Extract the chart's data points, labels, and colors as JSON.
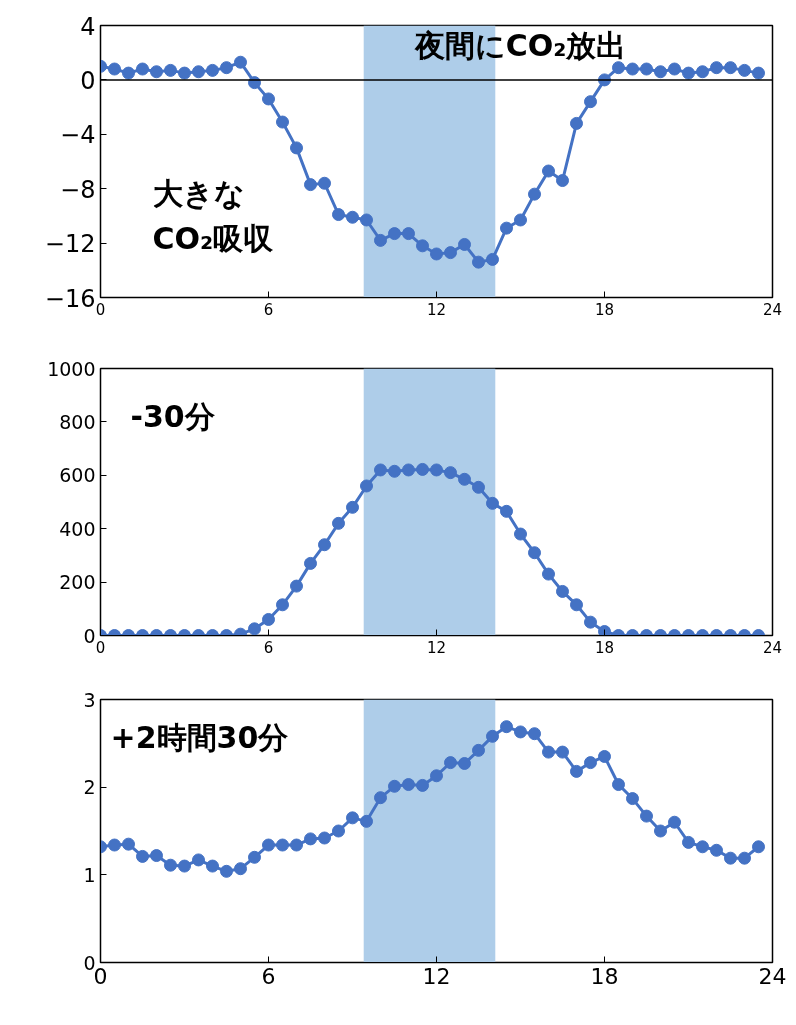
{
  "chart_data": [
    {
      "type": "line",
      "x": [
        0,
        0.5,
        1,
        1.5,
        2,
        2.5,
        3,
        3.5,
        4,
        4.5,
        5,
        5.5,
        6,
        6.5,
        7,
        7.5,
        8,
        8.5,
        9,
        9.5,
        10,
        10.5,
        11,
        11.5,
        12,
        12.5,
        13,
        13.5,
        14,
        14.5,
        15,
        15.5,
        16,
        16.5,
        17,
        17.5,
        18,
        18.5,
        19,
        19.5,
        20,
        20.5,
        21,
        21.5,
        22,
        22.5,
        23,
        23.5
      ],
      "series": [
        {
          "color": "#4472c4",
          "values": [
            1.0,
            0.8,
            0.5,
            0.8,
            0.6,
            0.7,
            0.5,
            0.6,
            0.7,
            0.9,
            1.3,
            -0.2,
            -1.4,
            -3.1,
            -5.0,
            -7.7,
            -7.6,
            -9.9,
            -10.1,
            -10.3,
            -11.8,
            -11.3,
            -11.3,
            -12.2,
            -12.8,
            -12.7,
            -12.1,
            -13.4,
            -13.2,
            -10.9,
            -10.3,
            -8.4,
            -6.7,
            -7.4,
            -3.2,
            -1.6,
            0.0,
            0.9,
            0.8,
            0.8,
            0.6,
            0.8,
            0.5,
            0.6,
            0.9,
            0.9,
            0.7,
            0.5
          ]
        }
      ],
      "xlim": [
        0,
        24
      ],
      "xticks": [
        0,
        6,
        12,
        18,
        24
      ],
      "ylim": [
        -16,
        4
      ],
      "yticks": [
        -16,
        -12,
        -8,
        -4,
        0,
        4
      ],
      "bands": [
        {
          "axis": "x",
          "from": 9.4,
          "to": 14.1,
          "color": "#aecde9"
        }
      ],
      "ref_lines": [
        {
          "axis": "y",
          "value": 0,
          "color": "#000000"
        }
      ],
      "annotations": [
        "夜間にCO₂放出",
        "大きな\nCO₂吸収"
      ],
      "marker": "circle",
      "line_style": "solid",
      "grid": false
    },
    {
      "type": "line",
      "x": [
        0,
        0.5,
        1,
        1.5,
        2,
        2.5,
        3,
        3.5,
        4,
        4.5,
        5,
        5.5,
        6,
        6.5,
        7,
        7.5,
        8,
        8.5,
        9,
        9.5,
        10,
        10.5,
        11,
        11.5,
        12,
        12.5,
        13,
        13.5,
        14,
        14.5,
        15,
        15.5,
        16,
        16.5,
        17,
        17.5,
        18,
        18.5,
        19,
        19.5,
        20,
        20.5,
        21,
        21.5,
        22,
        22.5,
        23,
        23.5
      ],
      "series": [
        {
          "color": "#4472c4",
          "values": [
            0,
            0,
            0,
            0,
            0,
            0,
            0,
            0,
            0,
            0,
            5,
            25,
            60,
            115,
            185,
            270,
            340,
            420,
            480,
            560,
            620,
            615,
            620,
            622,
            620,
            610,
            585,
            555,
            495,
            465,
            380,
            310,
            230,
            165,
            115,
            50,
            15,
            0,
            0,
            0,
            0,
            0,
            0,
            0,
            0,
            0,
            0,
            0
          ]
        }
      ],
      "xlim": [
        0,
        24
      ],
      "xticks": [
        0,
        6,
        12,
        18,
        24
      ],
      "ylim": [
        0,
        1000
      ],
      "yticks": [
        0,
        200,
        400,
        600,
        800,
        1000
      ],
      "bands": [
        {
          "axis": "x",
          "from": 9.4,
          "to": 14.1,
          "color": "#aecde9"
        }
      ],
      "annotations": [
        "-30分"
      ],
      "marker": "circle",
      "line_style": "solid",
      "grid": false
    },
    {
      "type": "line",
      "x": [
        0,
        0.5,
        1,
        1.5,
        2,
        2.5,
        3,
        3.5,
        4,
        4.5,
        5,
        5.5,
        6,
        6.5,
        7,
        7.5,
        8,
        8.5,
        9,
        9.5,
        10,
        10.5,
        11,
        11.5,
        12,
        12.5,
        13,
        13.5,
        14,
        14.5,
        15,
        15.5,
        16,
        16.5,
        17,
        17.5,
        18,
        18.5,
        19,
        19.5,
        20,
        20.5,
        21,
        21.5,
        22,
        22.5,
        23,
        23.5
      ],
      "series": [
        {
          "color": "#4472c4",
          "values": [
            1.32,
            1.34,
            1.35,
            1.21,
            1.22,
            1.11,
            1.1,
            1.17,
            1.1,
            1.04,
            1.07,
            1.2,
            1.34,
            1.34,
            1.34,
            1.41,
            1.42,
            1.5,
            1.65,
            1.61,
            1.88,
            2.01,
            2.03,
            2.02,
            2.13,
            2.28,
            2.27,
            2.42,
            2.58,
            2.69,
            2.63,
            2.61,
            2.4,
            2.4,
            2.18,
            2.28,
            2.35,
            2.03,
            1.87,
            1.67,
            1.5,
            1.6,
            1.37,
            1.32,
            1.28,
            1.19,
            1.19,
            1.32
          ]
        }
      ],
      "xlim": [
        0,
        24
      ],
      "xticks": [
        0,
        6,
        12,
        18,
        24
      ],
      "ylim": [
        0,
        3
      ],
      "yticks": [
        0,
        1,
        2,
        3
      ],
      "bands": [
        {
          "axis": "x",
          "from": 9.4,
          "to": 14.1,
          "color": "#aecde9"
        }
      ],
      "annotations": [
        "+2時間30分"
      ],
      "marker": "circle",
      "line_style": "solid",
      "grid": false
    }
  ]
}
